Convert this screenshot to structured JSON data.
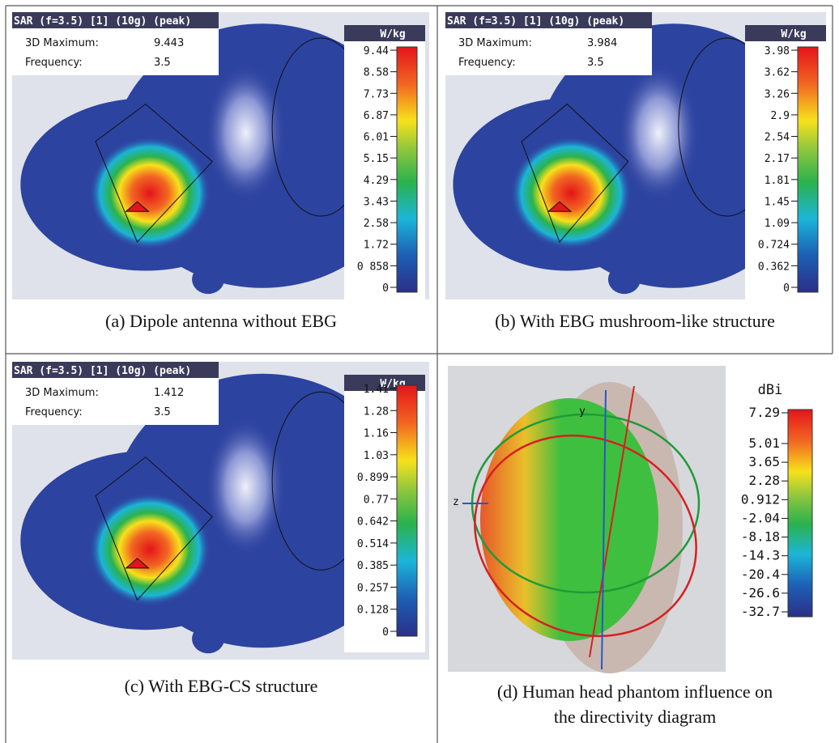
{
  "panels": [
    {
      "header": {
        "title": "SAR (f=3.5) [1] (10g) (peak)",
        "max_label": "3D Maximum:",
        "max_value": "9.443",
        "freq_label": "Frequency:",
        "freq_value": "3.5"
      },
      "unit": "W/kg",
      "scale": [
        "9.44",
        "8.58",
        "7.73",
        "6.87",
        "6.01",
        "5.15",
        "4.29",
        "3.43",
        "2.58",
        "1.72",
        "0 858",
        "0"
      ],
      "caption": [
        "(a) Dipole antenna without EBG"
      ]
    },
    {
      "header": {
        "title": "SAR (f=3.5) [1] (10g) (peak)",
        "max_label": "3D Maximum:",
        "max_value": "3.984",
        "freq_label": "Frequency:",
        "freq_value": "3.5"
      },
      "unit": "W/kg",
      "scale": [
        "3.98",
        "3.62",
        "3.26",
        "2.9",
        "2.54",
        "2.17",
        "1.81",
        "1.45",
        "1.09",
        "0.724",
        "0.362",
        "0"
      ],
      "caption": [
        "(b) With EBG mushroom-like structure"
      ]
    },
    {
      "header": {
        "title": "SAR (f=3.5) [1] (10g) (peak)",
        "max_label": "3D Maximum:",
        "max_value": "1.412",
        "freq_label": "Frequency:",
        "freq_value": "3.5"
      },
      "unit": "W/kg",
      "scale": [
        "1.41",
        "1.28",
        "1.16",
        "1.03",
        "0.899",
        "0.77",
        "0.642",
        "0.514",
        "0.385",
        "0.257",
        "0.128",
        "0"
      ],
      "caption": [
        "(c) With EBG-CS structure"
      ]
    },
    {
      "unit": "dBi",
      "scale": [
        "7.29",
        "5.01",
        "3.65",
        "2.28",
        "0.912",
        "-2.04",
        "-8.18",
        "-14.3",
        "-20.4",
        "-26.6",
        "-32.7"
      ],
      "axes": [
        "z",
        "y"
      ],
      "caption": [
        "(d) Human head phantom influence on",
        "the directivity diagram"
      ]
    }
  ]
}
